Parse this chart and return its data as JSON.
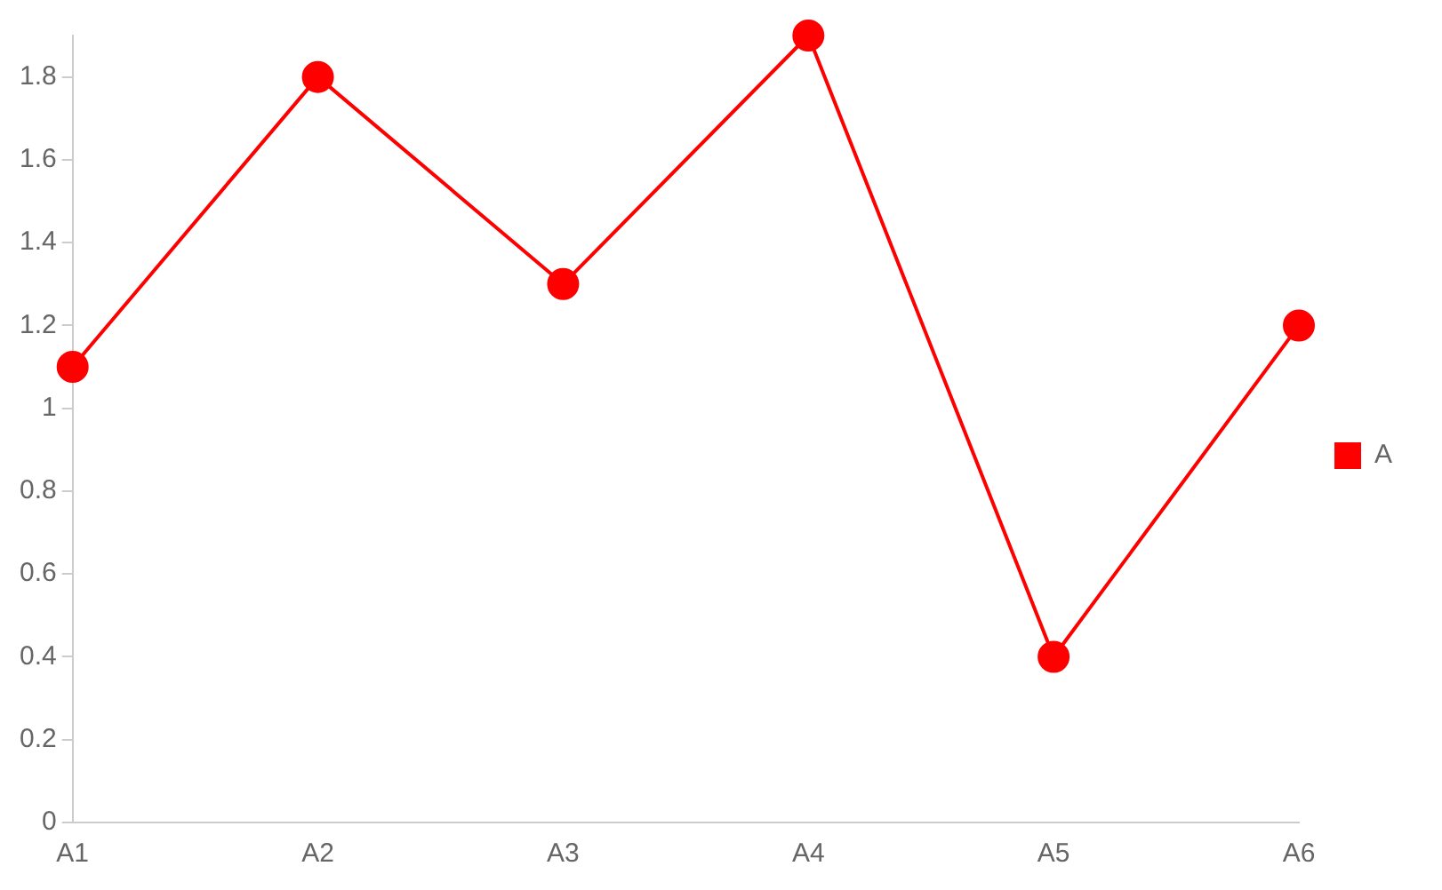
{
  "chart_data": {
    "type": "line",
    "categories": [
      "A1",
      "A2",
      "A3",
      "A4",
      "A5",
      "A6"
    ],
    "series": [
      {
        "name": "A",
        "color": "#ff0000",
        "values": [
          1.1,
          1.8,
          1.3,
          1.9,
          0.4,
          1.2
        ]
      }
    ],
    "ylim": [
      0,
      1.9
    ],
    "yticks": [
      0,
      0.2,
      0.4,
      0.6,
      0.8,
      1,
      1.2,
      1.4,
      1.6,
      1.8
    ],
    "grid": false,
    "legend": "right",
    "marker": "circle",
    "line_style": "solid"
  }
}
